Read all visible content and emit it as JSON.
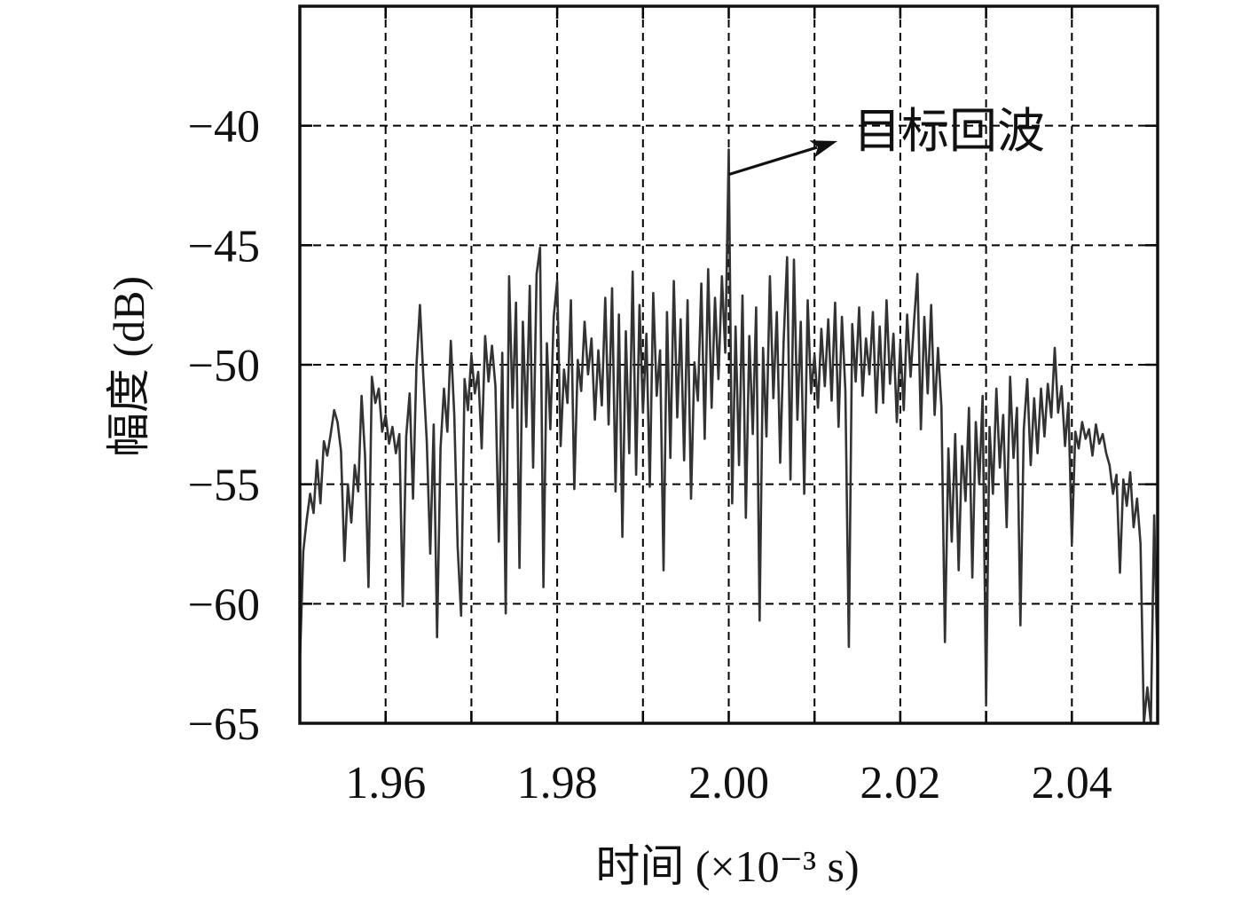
{
  "chart_data": {
    "type": "line",
    "xlabel": "时间 (×10⁻³ s)",
    "ylabel": "幅度 (dB)",
    "xlim": [
      1.95,
      2.05
    ],
    "ylim": [
      -65,
      -35
    ],
    "xticks": [
      1.96,
      1.98,
      2.0,
      2.02,
      2.04
    ],
    "xticklabels": [
      "1.96",
      "1.98",
      "2.00",
      "2.02",
      "2.04"
    ],
    "yticks": [
      -40,
      -45,
      -50,
      -55,
      -60,
      -65
    ],
    "yticklabels": [
      "−40",
      "−45",
      "−50",
      "−55",
      "−60",
      "−65"
    ],
    "grid": true,
    "xgrid": [
      1.96,
      1.97,
      1.98,
      1.99,
      2.0,
      2.01,
      2.02,
      2.03,
      2.04
    ],
    "ygrid": [
      -40,
      -45,
      -50,
      -55,
      -60
    ],
    "line_color": "#333333",
    "grid_color": "#000000",
    "series": [
      {
        "x": [
          1.95,
          1.9504,
          1.9508,
          1.9512,
          1.9516,
          1.952,
          1.9524,
          1.9528,
          1.9532,
          1.9536,
          1.954,
          1.9544,
          1.9548,
          1.9552,
          1.9556,
          1.956,
          1.9564,
          1.9568,
          1.9572,
          1.9576,
          1.958,
          1.9584,
          1.9588,
          1.9592,
          1.9596,
          1.96,
          1.9604,
          1.9608,
          1.9612,
          1.9616,
          1.962,
          1.9624,
          1.9628,
          1.9632,
          1.9636,
          1.964,
          1.9644,
          1.9648,
          1.9652,
          1.9656,
          1.966,
          1.9664,
          1.9668,
          1.9672,
          1.9676,
          1.968,
          1.9684,
          1.9688,
          1.9692,
          1.9696,
          1.97,
          1.9704,
          1.9708,
          1.9712,
          1.9716,
          1.972,
          1.9724,
          1.9728,
          1.9732,
          1.9736,
          1.974,
          1.9744,
          1.9748,
          1.9752,
          1.9756,
          1.976,
          1.9764,
          1.9768,
          1.9772,
          1.9776,
          1.978,
          1.9784,
          1.9788,
          1.9792,
          1.9796,
          1.98,
          1.9804,
          1.9808,
          1.9812,
          1.9816,
          1.982,
          1.9824,
          1.9828,
          1.9832,
          1.9836,
          1.984,
          1.9844,
          1.9848,
          1.9852,
          1.9856,
          1.986,
          1.9864,
          1.9868,
          1.9872,
          1.9876,
          1.988,
          1.9884,
          1.9888,
          1.9892,
          1.9896,
          1.99,
          1.9904,
          1.9908,
          1.9912,
          1.9916,
          1.992,
          1.9924,
          1.9928,
          1.9932,
          1.9936,
          1.994,
          1.9944,
          1.9948,
          1.9952,
          1.9956,
          1.996,
          1.9964,
          1.9968,
          1.9972,
          1.9976,
          1.998,
          1.9984,
          1.9988,
          1.9992,
          1.9996,
          2.0,
          2.0004,
          2.0008,
          2.0012,
          2.0016,
          2.002,
          2.0024,
          2.0028,
          2.0032,
          2.0036,
          2.004,
          2.0044,
          2.0048,
          2.0052,
          2.0056,
          2.006,
          2.0064,
          2.0068,
          2.0072,
          2.0076,
          2.008,
          2.0084,
          2.0088,
          2.0092,
          2.0096,
          2.01,
          2.0104,
          2.0108,
          2.0112,
          2.0116,
          2.012,
          2.0124,
          2.0128,
          2.0132,
          2.0136,
          2.014,
          2.0144,
          2.0148,
          2.0152,
          2.0156,
          2.016,
          2.0164,
          2.0168,
          2.0172,
          2.0176,
          2.018,
          2.0184,
          2.0188,
          2.0192,
          2.0196,
          2.02,
          2.0204,
          2.0208,
          2.0212,
          2.0216,
          2.022,
          2.0224,
          2.0228,
          2.0232,
          2.0236,
          2.024,
          2.0244,
          2.0248,
          2.0252,
          2.0256,
          2.026,
          2.0264,
          2.0268,
          2.0272,
          2.0276,
          2.028,
          2.0284,
          2.0288,
          2.0292,
          2.0296,
          2.03,
          2.0304,
          2.0308,
          2.0312,
          2.0316,
          2.032,
          2.0324,
          2.0328,
          2.0332,
          2.0336,
          2.034,
          2.0344,
          2.0348,
          2.0352,
          2.0356,
          2.036,
          2.0364,
          2.0368,
          2.0372,
          2.0376,
          2.038,
          2.0384,
          2.0388,
          2.0392,
          2.0396,
          2.04,
          2.0404,
          2.0408,
          2.0412,
          2.0416,
          2.042,
          2.0424,
          2.0428,
          2.0432,
          2.0436,
          2.044,
          2.0444,
          2.0448,
          2.0452,
          2.0456,
          2.046,
          2.0464,
          2.0468,
          2.0472,
          2.0476,
          2.048,
          2.0484,
          2.0488,
          2.0492,
          2.0496,
          2.05
        ],
        "y": [
          -62.5,
          -57.8,
          -56.5,
          -55.4,
          -56.2,
          -54.0,
          -55.8,
          -53.2,
          -53.8,
          -52.9,
          -51.9,
          -52.4,
          -53.6,
          -58.2,
          -55.0,
          -56.6,
          -54.2,
          -55.3,
          -51.3,
          -53.8,
          -59.3,
          -50.5,
          -51.6,
          -51.0,
          -52.8,
          -52.1,
          -53.3,
          -52.6,
          -53.7,
          -52.9,
          -60.1,
          -53.0,
          -51.2,
          -55.6,
          -50.0,
          -47.5,
          -50.5,
          -53.2,
          -57.9,
          -52.5,
          -61.4,
          -53.5,
          -51.0,
          -52.8,
          -49.0,
          -52.1,
          -57.6,
          -60.5,
          -50.6,
          -51.9,
          -49.6,
          -51.2,
          -50.3,
          -53.5,
          -48.8,
          -50.7,
          -49.2,
          -50.9,
          -57.4,
          -49.5,
          -60.4,
          -46.3,
          -51.8,
          -47.4,
          -58.5,
          -48.2,
          -52.6,
          -46.7,
          -54.3,
          -46.2,
          -45.1,
          -59.3,
          -49.1,
          -52.7,
          -48.0,
          -46.5,
          -53.4,
          -50.2,
          -51.6,
          -47.3,
          -55.2,
          -49.8,
          -51.1,
          -48.2,
          -50.4,
          -48.9,
          -52.3,
          -49.4,
          -51.7,
          -47.2,
          -52.5,
          -46.8,
          -55.3,
          -47.9,
          -57.2,
          -48.6,
          -53.7,
          -46.1,
          -54.6,
          -47.5,
          -52.0,
          -48.7,
          -55.1,
          -47.0,
          -51.3,
          -49.4,
          -58.6,
          -47.8,
          -53.9,
          -46.5,
          -52.2,
          -48.1,
          -54.0,
          -47.3,
          -55.6,
          -49.9,
          -51.5,
          -46.6,
          -53.1,
          -46.0,
          -51.8,
          -47.2,
          -50.6,
          -46.3,
          -49.5,
          -41.0,
          -55.8,
          -48.4,
          -54.2,
          -47.1,
          -56.4,
          -48.8,
          -52.9,
          -47.6,
          -60.7,
          -49.3,
          -53.0,
          -46.3,
          -51.4,
          -47.8,
          -54.1,
          -49.0,
          -45.5,
          -54.8,
          -45.6,
          -52.3,
          -48.2,
          -55.4,
          -47.3,
          -51.2,
          -49.6,
          -51.8,
          -48.5,
          -50.9,
          -48.1,
          -51.5,
          -47.4,
          -52.6,
          -48.0,
          -51.1,
          -61.8,
          -48.3,
          -50.7,
          -47.6,
          -51.3,
          -48.9,
          -50.4,
          -47.8,
          -52.0,
          -48.4,
          -51.6,
          -47.3,
          -50.8,
          -48.7,
          -52.4,
          -49.1,
          -51.9,
          -47.9,
          -50.5,
          -48.2,
          -46.2,
          -52.7,
          -48.0,
          -51.2,
          -47.5,
          -52.1,
          -49.3,
          -51.8,
          -61.6,
          -53.5,
          -57.4,
          -52.9,
          -58.6,
          -53.4,
          -55.7,
          -51.8,
          -58.9,
          -52.4,
          -55.0,
          -51.3,
          -64.2,
          -52.6,
          -55.4,
          -51.0,
          -54.3,
          -52.1,
          -56.8,
          -50.5,
          -53.9,
          -51.8,
          -60.9,
          -52.7,
          -50.6,
          -54.2,
          -51.4,
          -53.7,
          -51.0,
          -53.0,
          -50.8,
          -52.2,
          -49.3,
          -52.0,
          -50.9,
          -53.4,
          -51.6,
          -57.5,
          -52.8,
          -53.5,
          -52.4,
          -53.1,
          -52.7,
          -53.8,
          -52.5,
          -53.3,
          -52.9,
          -53.7,
          -54.2,
          -55.4,
          -54.6,
          -58.7,
          -54.8,
          -55.9,
          -54.5,
          -56.8,
          -55.6,
          -57.5,
          -65.0,
          -63.5,
          -65.0,
          -56.3,
          -62.8
        ]
      }
    ],
    "annotations": [
      {
        "text": "目标回波",
        "x": 2.0,
        "y": -41.0
      }
    ]
  }
}
